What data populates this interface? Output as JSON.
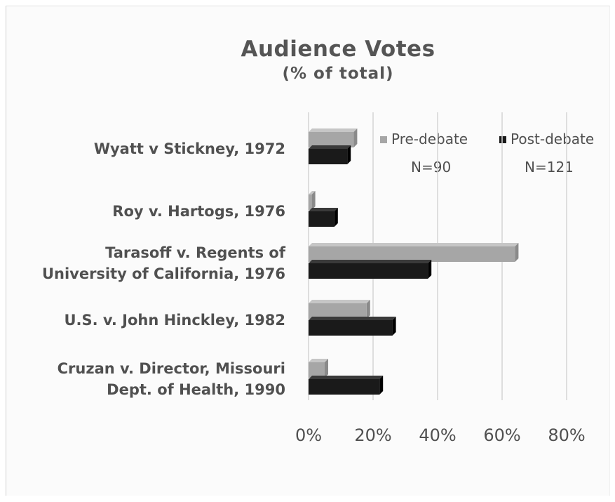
{
  "chart_data": {
    "type": "bar",
    "orientation": "horizontal",
    "title": "Audience Votes",
    "subtitle": "(% of total)",
    "categories": [
      [
        "Wyatt v Stickney, 1972"
      ],
      [
        "Roy v. Hartogs, 1976"
      ],
      [
        "Tarasoff v. Regents of",
        "University of California, 1976"
      ],
      [
        "U.S. v. John Hinckley, 1982"
      ],
      [
        "Cruzan v. Director, Missouri",
        "Dept. of Health, 1990"
      ]
    ],
    "series": [
      {
        "name": "Pre-debate",
        "n_label": "N=90",
        "color": "#a6a6a6",
        "values": [
          14,
          1,
          64,
          18,
          5
        ]
      },
      {
        "name": "Post-debate",
        "n_label": "N=121",
        "color": "#1a1a1a",
        "values": [
          12,
          8,
          37,
          26,
          22
        ]
      }
    ],
    "x_ticks": [
      "0%",
      "20%",
      "40%",
      "60%",
      "80%"
    ],
    "xlim": [
      0,
      80
    ],
    "grid": true,
    "legend_position": "top-right"
  }
}
